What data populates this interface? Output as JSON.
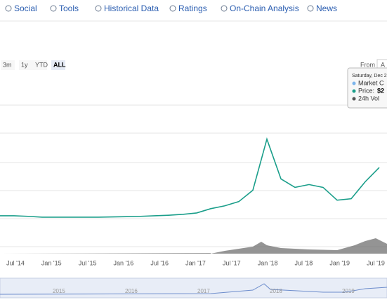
{
  "nav": {
    "tabs": [
      "Social",
      "Tools",
      "Historical Data",
      "Ratings",
      "On-Chain Analysis",
      "News"
    ]
  },
  "range_buttons": [
    "3m",
    "1y",
    "YTD",
    "ALL"
  ],
  "from_label": "From",
  "to_label": "A",
  "tooltip": {
    "date": "Saturday, Dec 2",
    "market_cap": "Market C",
    "price_label": "Price:",
    "price_value": "$2",
    "volume": "24h Vol"
  },
  "chart_data": {
    "type": "line",
    "x_ticks": [
      "Jul '14",
      "Jan '15",
      "Jul '15",
      "Jan '16",
      "Jul '16",
      "Jan '17",
      "Jul '17",
      "Jan '18",
      "Jul '18",
      "Jan '19",
      "Jul '19"
    ],
    "ylim": [
      0,
      4
    ],
    "series": [
      {
        "color": "#1a9e8a",
        "values": [
          0.1,
          0.1,
          0.08,
          0.05,
          0.05,
          0.05,
          0.05,
          0.05,
          0.06,
          0.07,
          0.08,
          0.1,
          0.12,
          0.15,
          0.2,
          0.35,
          0.45,
          0.6,
          1.0,
          2.8,
          1.4,
          1.1,
          1.2,
          1.1,
          0.65,
          0.7,
          1.3,
          1.8
        ]
      }
    ],
    "navigator_years": [
      "2015",
      "2016",
      "2017",
      "2018",
      "2019"
    ]
  }
}
